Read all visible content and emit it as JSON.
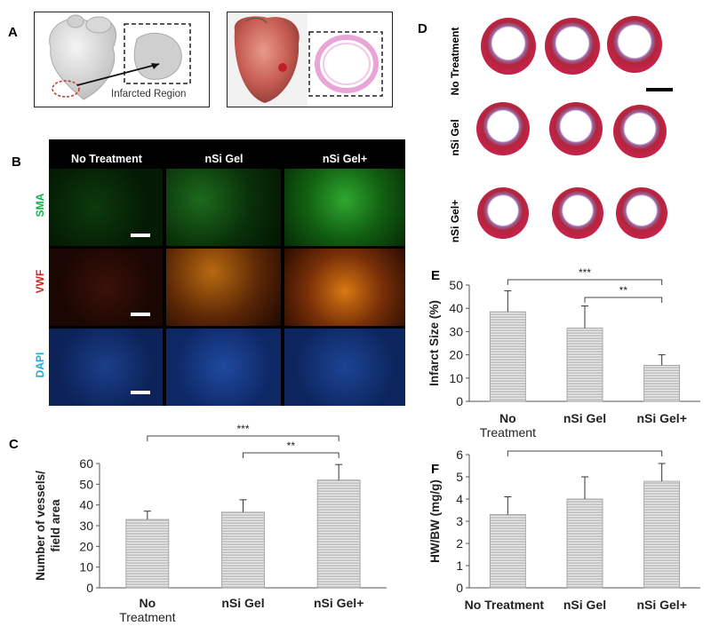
{
  "panel_labels": {
    "A": "A",
    "B": "B",
    "C": "C",
    "D": "D",
    "E": "E",
    "F": "F"
  },
  "panel_a": {
    "infarct_label": "Infarcted Region"
  },
  "panel_b": {
    "columns": [
      "No Treatment",
      "nSi Gel",
      "nSi Gel+"
    ],
    "rows": [
      {
        "label": "SMA",
        "color": "#17b24a"
      },
      {
        "label": "VWF",
        "color": "#d42020"
      },
      {
        "label": "DAPI",
        "color": "#20a8e0"
      }
    ]
  },
  "panel_d": {
    "rows": [
      "No Treatment",
      "nSi Gel",
      "nSi Gel+"
    ]
  },
  "colors": {
    "bar_fill": "#c8c8c8",
    "bar_stroke": "#9a9a9a",
    "axis": "#555555"
  },
  "chart_data": [
    {
      "id": "C",
      "type": "bar",
      "categories": [
        "No Treatment",
        "nSi Gel",
        "nSi Gel+"
      ],
      "values": [
        33,
        36.5,
        52
      ],
      "errors": [
        4,
        6,
        7.5
      ],
      "ylabel": "Number of vessels/ field area",
      "xlabel": "",
      "ylim": [
        0,
        60
      ],
      "yticks": [
        0,
        10,
        20,
        30,
        40,
        50,
        60
      ],
      "significance": [
        {
          "from": 0,
          "to": 2,
          "label": "***"
        },
        {
          "from": 1,
          "to": 2,
          "label": "**"
        }
      ]
    },
    {
      "id": "E",
      "type": "bar",
      "categories": [
        "No Treatment",
        "nSi Gel",
        "nSi Gel+"
      ],
      "values": [
        38.5,
        31.5,
        15.5
      ],
      "errors": [
        9,
        9.5,
        4.5
      ],
      "ylabel": "Infarct Size (%)",
      "xlabel": "",
      "ylim": [
        0,
        50
      ],
      "yticks": [
        0,
        10,
        20,
        30,
        40,
        50
      ],
      "significance": [
        {
          "from": 0,
          "to": 2,
          "label": "***"
        },
        {
          "from": 1,
          "to": 2,
          "label": "**"
        }
      ]
    },
    {
      "id": "F",
      "type": "bar",
      "categories": [
        "No Treatment",
        "nSi Gel",
        "nSi Gel+"
      ],
      "values": [
        3.3,
        4.0,
        4.8
      ],
      "errors": [
        0.8,
        1.0,
        0.8
      ],
      "ylabel": "HW/BW (mg/g)",
      "xlabel": "",
      "ylim": [
        0,
        6
      ],
      "yticks": [
        0,
        1,
        2,
        3,
        4,
        5,
        6
      ],
      "significance": [
        {
          "from": 0,
          "to": 2,
          "label": "*"
        }
      ]
    }
  ]
}
